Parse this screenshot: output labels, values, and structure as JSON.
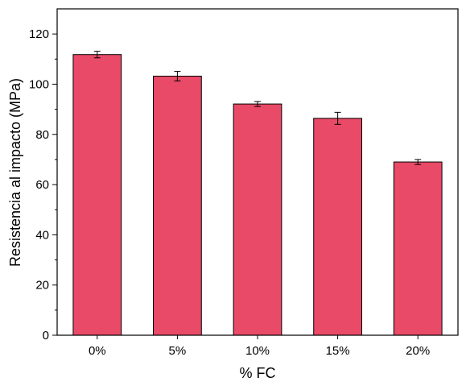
{
  "chart_data": {
    "type": "bar",
    "title": "",
    "xlabel": "% FC",
    "ylabel": "Resistencia al impacto (MPa)",
    "categories": [
      "0%",
      "5%",
      "10%",
      "15%",
      "20%"
    ],
    "values": [
      111.8,
      103.2,
      92.1,
      86.4,
      69.0
    ],
    "errors": [
      1.3,
      1.9,
      1.0,
      2.4,
      1.0
    ],
    "ylim": [
      0,
      130
    ],
    "yticks": [
      0,
      20,
      40,
      60,
      80,
      100,
      120
    ],
    "ytick_labels": [
      "0",
      "20",
      "40",
      "60",
      "80",
      "100",
      "120"
    ],
    "grid": false,
    "legend": "none",
    "bar_color": "#e84a67",
    "edge_color": "#000000"
  }
}
